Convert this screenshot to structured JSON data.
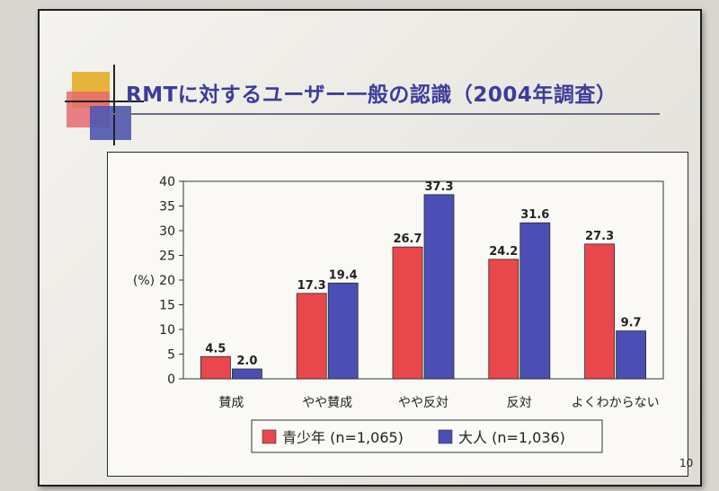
{
  "slide": {
    "title": "RMTに対するユーザー一般の認識（2004年調査）",
    "page_number": "10"
  },
  "colors": {
    "youth": "#e8484c",
    "adult": "#4b4fb5",
    "title": "#3c3c9c"
  },
  "chart_data": {
    "type": "bar",
    "title": "",
    "xlabel": "",
    "ylabel": "(%)",
    "ylim": [
      0,
      40
    ],
    "yticks": [
      0,
      5,
      10,
      15,
      20,
      25,
      30,
      35,
      40
    ],
    "categories": [
      "賛成",
      "やや賛成",
      "やや反対",
      "反対",
      "よくわからない"
    ],
    "series": [
      {
        "name": "青少年 (n=1,065)",
        "values": [
          4.5,
          17.3,
          26.7,
          24.2,
          27.3
        ],
        "value_labels": [
          "4.5",
          "17.3",
          "26.7",
          "24.2",
          "27.3"
        ]
      },
      {
        "name": "大人 (n=1,036)",
        "values": [
          2.0,
          19.4,
          37.3,
          31.6,
          9.7
        ],
        "value_labels": [
          "2.0",
          "19.4",
          "37.3",
          "31.6",
          "9.7"
        ]
      }
    ],
    "grid": false,
    "legend_position": "bottom"
  }
}
